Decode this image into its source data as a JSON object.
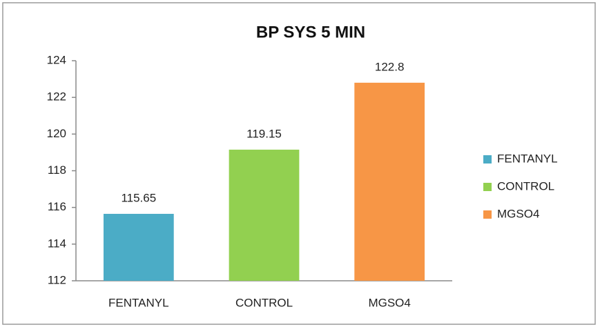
{
  "chart_data": {
    "type": "bar",
    "title": "BP SYS 5 MIN",
    "categories": [
      "FENTANYL",
      "CONTROL",
      "MGSO4"
    ],
    "values": [
      115.65,
      119.15,
      122.8
    ],
    "colors": [
      "#4bacc6",
      "#92d050",
      "#f79646"
    ],
    "ylim": [
      112,
      124
    ],
    "yticks": [
      112,
      114,
      116,
      118,
      120,
      122,
      124
    ],
    "grid": false,
    "legend": "right"
  }
}
